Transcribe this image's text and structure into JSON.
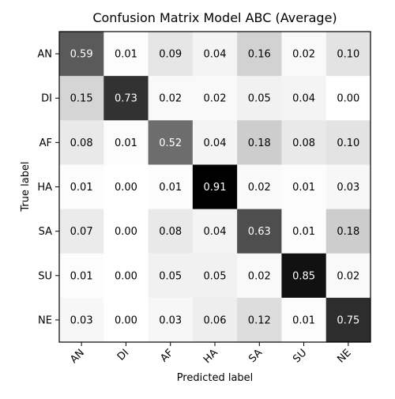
{
  "chart_data": {
    "type": "heatmap",
    "title": "Confusion Matrix Model ABC (Average)",
    "xlabel": "Predicted label",
    "ylabel": "True label",
    "x_categories": [
      "AN",
      "DI",
      "AF",
      "HA",
      "SA",
      "SU",
      "NE"
    ],
    "y_categories": [
      "AN",
      "DI",
      "AF",
      "HA",
      "SA",
      "SU",
      "NE"
    ],
    "values": [
      [
        0.59,
        0.01,
        0.09,
        0.04,
        0.16,
        0.02,
        0.1
      ],
      [
        0.15,
        0.73,
        0.02,
        0.02,
        0.05,
        0.04,
        0.0
      ],
      [
        0.08,
        0.01,
        0.52,
        0.04,
        0.18,
        0.08,
        0.1
      ],
      [
        0.01,
        0.0,
        0.01,
        0.91,
        0.02,
        0.01,
        0.03
      ],
      [
        0.07,
        0.0,
        0.08,
        0.04,
        0.63,
        0.01,
        0.18
      ],
      [
        0.01,
        0.0,
        0.05,
        0.05,
        0.02,
        0.85,
        0.02
      ],
      [
        0.03,
        0.0,
        0.03,
        0.06,
        0.12,
        0.01,
        0.75
      ]
    ],
    "value_format": "0.00",
    "colormap": "greys",
    "value_range": [
      0,
      0.91
    ],
    "x_tick_rotation": "45 degrees",
    "grid": false,
    "legend": false
  }
}
